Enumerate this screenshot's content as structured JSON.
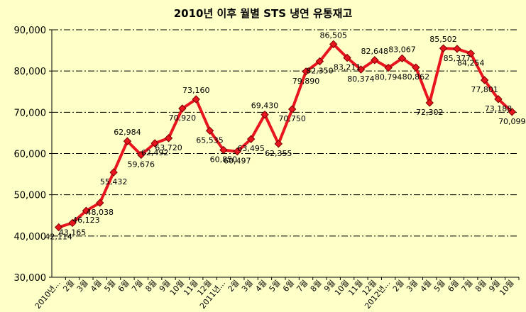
{
  "chart_data": {
    "type": "line",
    "title": "2010년 이후 월별 STS 냉연 유통재고",
    "categories": [
      "2010년...",
      "2월",
      "3월",
      "4월",
      "5월",
      "6월",
      "7월",
      "8월",
      "9월",
      "10월",
      "11월",
      "12월",
      "2011년...",
      "2월",
      "3월",
      "4월",
      "5월",
      "6월",
      "7월",
      "8월",
      "9월",
      "10월",
      "11월",
      "12월",
      "2012년...",
      "2월",
      "3월",
      "4월",
      "5월",
      "6월",
      "7월",
      "8월",
      "9월",
      "10월"
    ],
    "values": [
      42114,
      43165,
      46123,
      48038,
      55432,
      62984,
      59676,
      62492,
      63720,
      70920,
      73160,
      65535,
      60850,
      60497,
      63495,
      69430,
      62355,
      70750,
      79890,
      82350,
      86505,
      83211,
      80374,
      82648,
      80794,
      83067,
      80862,
      72302,
      85502,
      85377,
      84254,
      77801,
      73188,
      70099
    ],
    "data_labels": [
      "42,114",
      "43,165",
      "46,123",
      "48,038",
      "55,432",
      "62,984",
      "59,676",
      "62,492",
      "63,720",
      "70,920",
      "73,160",
      "65,535",
      "60,850",
      "60,497",
      "63,495",
      "69,430",
      "62,355",
      "70,750",
      "79,890",
      "82,350",
      "86,505",
      "83,211",
      "80,374",
      "82,648",
      "80,794",
      "83,067",
      "80,862",
      "72,302",
      "85,502",
      "85,377",
      "84,254",
      "77,801",
      "73,188",
      "70,099"
    ],
    "ylim": [
      30000,
      90000
    ],
    "yticks": [
      30000,
      40000,
      50000,
      60000,
      70000,
      80000,
      90000
    ],
    "ytick_labels": [
      "30,000",
      "40,000",
      "50,000",
      "60,000",
      "70,000",
      "80,000",
      "90,000"
    ],
    "grid": true,
    "legend": "none",
    "line_color": "#E8141E",
    "marker_color": "#E8141E",
    "background_color": "#FFFFC8"
  }
}
